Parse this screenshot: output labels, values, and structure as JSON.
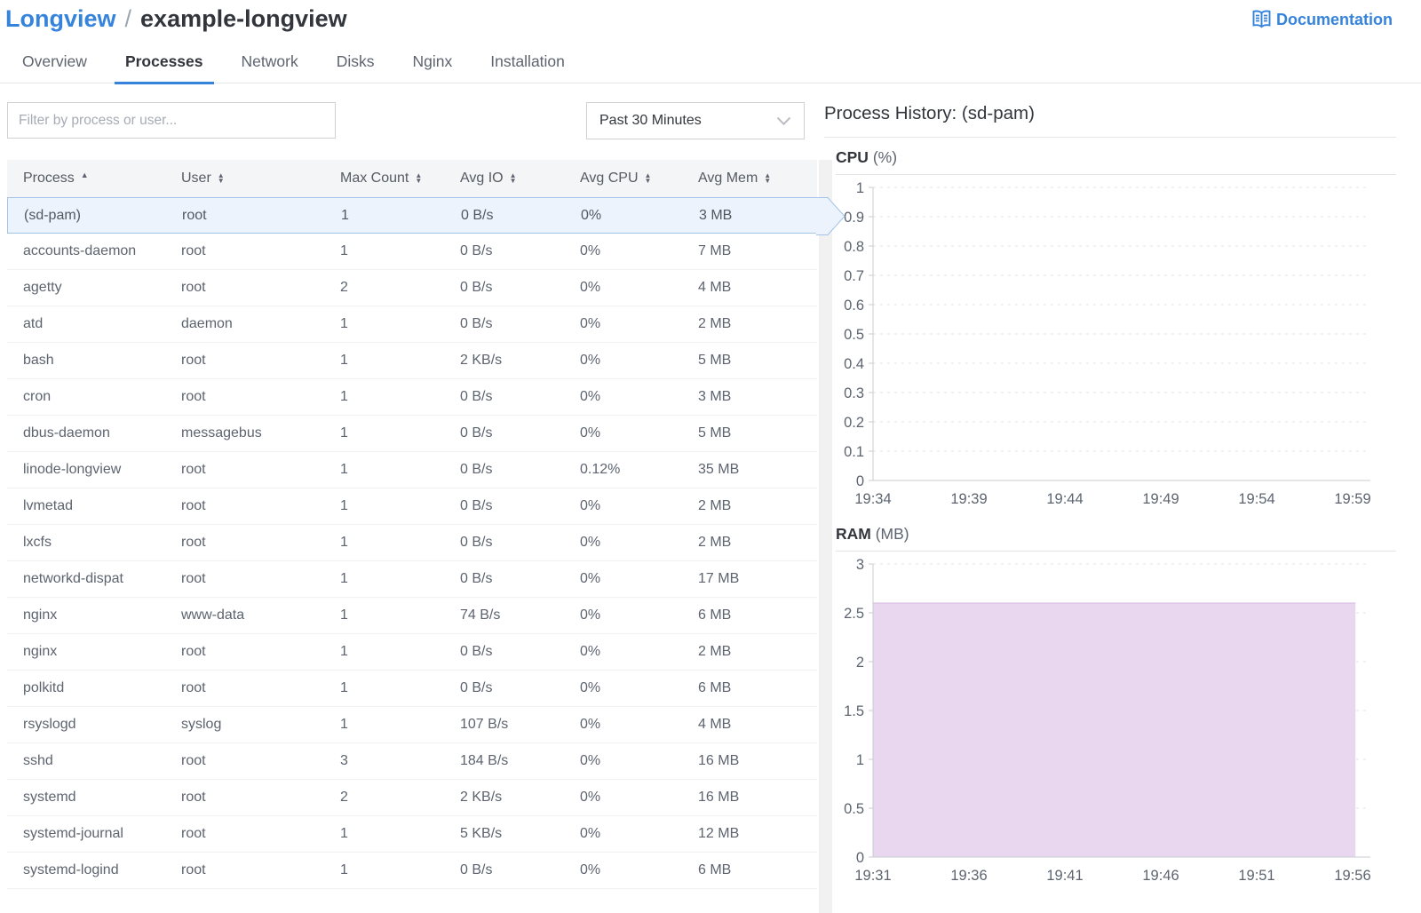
{
  "header": {
    "breadcrumb_parent": "Longview",
    "breadcrumb_separator": "/",
    "breadcrumb_current": "example-longview",
    "documentation_label": "Documentation"
  },
  "tabs": [
    {
      "label": "Overview",
      "active": false
    },
    {
      "label": "Processes",
      "active": true
    },
    {
      "label": "Network",
      "active": false
    },
    {
      "label": "Disks",
      "active": false
    },
    {
      "label": "Nginx",
      "active": false
    },
    {
      "label": "Installation",
      "active": false
    }
  ],
  "toolbar": {
    "filter_placeholder": "Filter by process or user...",
    "time_range_value": "Past 30 Minutes"
  },
  "table": {
    "columns": [
      {
        "label": "Process",
        "sort": "asc"
      },
      {
        "label": "User",
        "sort": "both"
      },
      {
        "label": "Max Count",
        "sort": "both"
      },
      {
        "label": "Avg IO",
        "sort": "both"
      },
      {
        "label": "Avg CPU",
        "sort": "both"
      },
      {
        "label": "Avg Mem",
        "sort": "both"
      }
    ],
    "rows": [
      {
        "process": "(sd-pam)",
        "user": "root",
        "max_count": "1",
        "avg_io": "0 B/s",
        "avg_cpu": "0%",
        "avg_mem": "3 MB",
        "selected": true
      },
      {
        "process": "accounts-daemon",
        "user": "root",
        "max_count": "1",
        "avg_io": "0 B/s",
        "avg_cpu": "0%",
        "avg_mem": "7 MB",
        "selected": false
      },
      {
        "process": "agetty",
        "user": "root",
        "max_count": "2",
        "avg_io": "0 B/s",
        "avg_cpu": "0%",
        "avg_mem": "4 MB",
        "selected": false
      },
      {
        "process": "atd",
        "user": "daemon",
        "max_count": "1",
        "avg_io": "0 B/s",
        "avg_cpu": "0%",
        "avg_mem": "2 MB",
        "selected": false
      },
      {
        "process": "bash",
        "user": "root",
        "max_count": "1",
        "avg_io": "2 KB/s",
        "avg_cpu": "0%",
        "avg_mem": "5 MB",
        "selected": false
      },
      {
        "process": "cron",
        "user": "root",
        "max_count": "1",
        "avg_io": "0 B/s",
        "avg_cpu": "0%",
        "avg_mem": "3 MB",
        "selected": false
      },
      {
        "process": "dbus-daemon",
        "user": "messagebus",
        "max_count": "1",
        "avg_io": "0 B/s",
        "avg_cpu": "0%",
        "avg_mem": "5 MB",
        "selected": false
      },
      {
        "process": "linode-longview",
        "user": "root",
        "max_count": "1",
        "avg_io": "0 B/s",
        "avg_cpu": "0.12%",
        "avg_mem": "35 MB",
        "selected": false
      },
      {
        "process": "lvmetad",
        "user": "root",
        "max_count": "1",
        "avg_io": "0 B/s",
        "avg_cpu": "0%",
        "avg_mem": "2 MB",
        "selected": false
      },
      {
        "process": "lxcfs",
        "user": "root",
        "max_count": "1",
        "avg_io": "0 B/s",
        "avg_cpu": "0%",
        "avg_mem": "2 MB",
        "selected": false
      },
      {
        "process": "networkd-dispat",
        "user": "root",
        "max_count": "1",
        "avg_io": "0 B/s",
        "avg_cpu": "0%",
        "avg_mem": "17 MB",
        "selected": false
      },
      {
        "process": "nginx",
        "user": "www-data",
        "max_count": "1",
        "avg_io": "74 B/s",
        "avg_cpu": "0%",
        "avg_mem": "6 MB",
        "selected": false
      },
      {
        "process": "nginx",
        "user": "root",
        "max_count": "1",
        "avg_io": "0 B/s",
        "avg_cpu": "0%",
        "avg_mem": "2 MB",
        "selected": false
      },
      {
        "process": "polkitd",
        "user": "root",
        "max_count": "1",
        "avg_io": "0 B/s",
        "avg_cpu": "0%",
        "avg_mem": "6 MB",
        "selected": false
      },
      {
        "process": "rsyslogd",
        "user": "syslog",
        "max_count": "1",
        "avg_io": "107 B/s",
        "avg_cpu": "0%",
        "avg_mem": "4 MB",
        "selected": false
      },
      {
        "process": "sshd",
        "user": "root",
        "max_count": "3",
        "avg_io": "184 B/s",
        "avg_cpu": "0%",
        "avg_mem": "16 MB",
        "selected": false
      },
      {
        "process": "systemd",
        "user": "root",
        "max_count": "2",
        "avg_io": "2 KB/s",
        "avg_cpu": "0%",
        "avg_mem": "16 MB",
        "selected": false
      },
      {
        "process": "systemd-journal",
        "user": "root",
        "max_count": "1",
        "avg_io": "5 KB/s",
        "avg_cpu": "0%",
        "avg_mem": "12 MB",
        "selected": false
      },
      {
        "process": "systemd-logind",
        "user": "root",
        "max_count": "1",
        "avg_io": "0 B/s",
        "avg_cpu": "0%",
        "avg_mem": "6 MB",
        "selected": false
      }
    ]
  },
  "panel": {
    "title": "Process History: (sd-pam)"
  },
  "chart_data": [
    {
      "type": "line",
      "title": "CPU",
      "unit": "(%)",
      "ylim": [
        0,
        1
      ],
      "yticks": [
        1,
        0.9,
        0.8,
        0.7,
        0.6,
        0.5,
        0.4,
        0.3,
        0.2,
        0.1,
        0
      ],
      "xticks": [
        "19:34",
        "19:39",
        "19:44",
        "19:49",
        "19:54",
        "19:59"
      ],
      "grid": true,
      "legend": "none",
      "series": [
        {
          "name": "(sd-pam) CPU",
          "values": [
            0,
            0
          ],
          "color": "#3683dc",
          "fill": "none"
        }
      ],
      "data_span_frac": 1.0
    },
    {
      "type": "area",
      "title": "RAM",
      "unit": "(MB)",
      "ylim": [
        0,
        3
      ],
      "yticks": [
        3,
        2.5,
        2,
        1.5,
        1,
        0.5,
        0
      ],
      "xticks": [
        "19:31",
        "19:36",
        "19:41",
        "19:46",
        "19:51",
        "19:56"
      ],
      "grid": true,
      "legend": "none",
      "series": [
        {
          "name": "(sd-pam) RAM",
          "values": [
            2.6,
            2.6
          ],
          "color": "#d5b9e2",
          "fill": "#e9d6ef"
        }
      ],
      "data_span_frac": 0.97
    }
  ],
  "colors": {
    "accent_blue": "#3683dc",
    "text_dark": "#32363c",
    "text_gray": "#5d646f",
    "selected_row_bg": "#ecf3fc",
    "selected_row_border": "#a3c3e8",
    "grid_dash": "#e0e3e7",
    "axis_line": "#c9ccd0",
    "ram_fill": "#e9d6ef"
  }
}
